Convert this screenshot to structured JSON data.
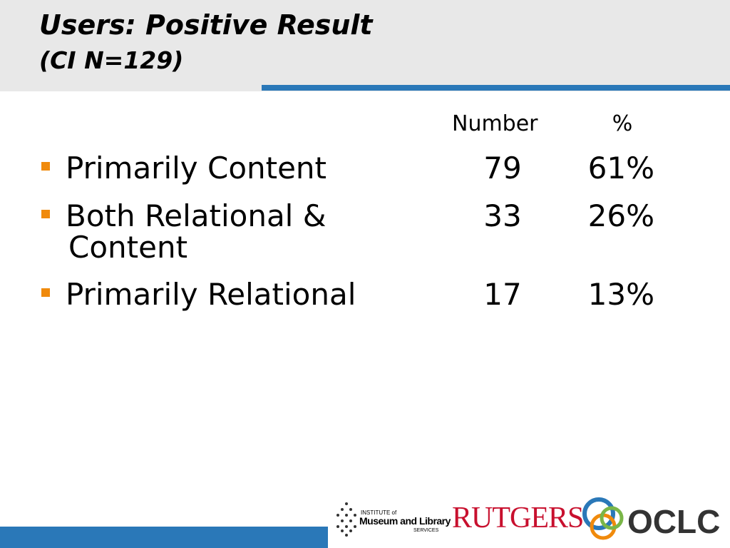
{
  "header": {
    "title": "Users: Positive Result",
    "subtitle": "(CI N=129)"
  },
  "table": {
    "columns": [
      "Number",
      "%"
    ],
    "rows": [
      [
        "Primarily Content",
        "79",
        "61%"
      ],
      [
        "Both Relational & Content",
        "33",
        "26%"
      ],
      [
        "Primarily Relational",
        "17",
        "13%"
      ]
    ]
  },
  "logos": {
    "imls_top": "INSTITUTE of",
    "imls_main": "Museum and Library",
    "imls_bottom": "SERVICES",
    "rutgers": "RUTGERS",
    "oclc": "OCLC"
  }
}
